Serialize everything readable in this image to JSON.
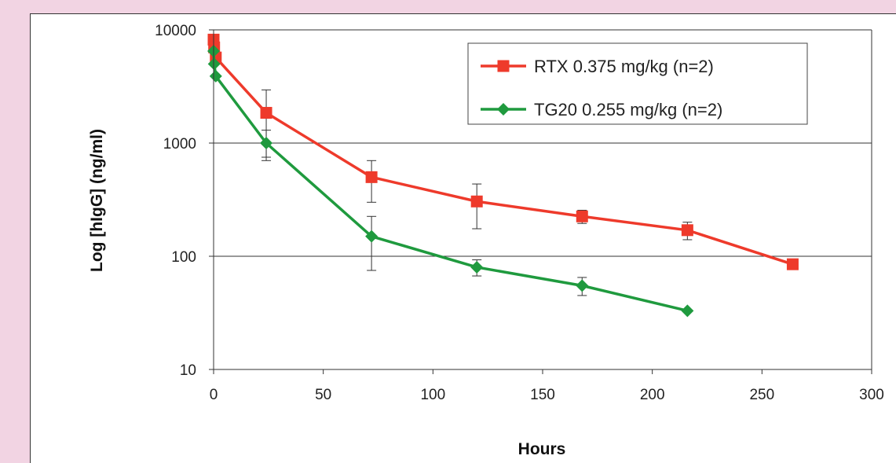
{
  "chart_data": {
    "type": "line",
    "xlabel": "Hours",
    "ylabel": "Log [hIgG] (ng/ml)",
    "yscale": "log",
    "xlim": [
      0,
      300
    ],
    "ylim": [
      10,
      10000
    ],
    "x_ticks": [
      "0",
      "50",
      "100",
      "150",
      "200",
      "250",
      "300"
    ],
    "y_ticks": [
      "10",
      "100",
      "1000",
      "10000"
    ],
    "grid": "horizontal major gridlines",
    "legend_position": "top-right",
    "series": [
      {
        "name": "RTX 0.375 mg/kg (n=2)",
        "color": "#ee3a2b",
        "marker": "square",
        "x": [
          0,
          0.25,
          1,
          24,
          72,
          120,
          168,
          216,
          264
        ],
        "y": [
          8200,
          7000,
          5700,
          1850,
          500,
          305,
          225,
          170,
          85
        ],
        "err": [
          0,
          0,
          0,
          1100,
          200,
          130,
          30,
          30,
          0
        ]
      },
      {
        "name": "TG20 0.255 mg/kg (n=2)",
        "color": "#1f9a3e",
        "marker": "diamond",
        "x": [
          0,
          0.25,
          1,
          24,
          72,
          120,
          168,
          216
        ],
        "y": [
          6500,
          5000,
          3900,
          1000,
          150,
          80,
          55,
          33
        ],
        "err": [
          0,
          0,
          0,
          300,
          75,
          13,
          10,
          0
        ]
      }
    ]
  }
}
